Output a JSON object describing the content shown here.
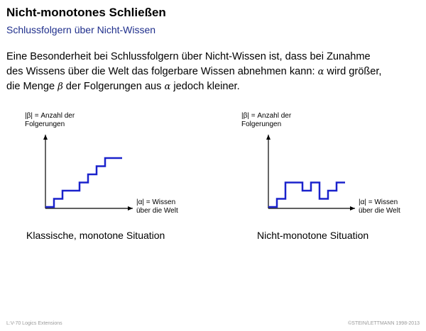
{
  "slide": {
    "title": "Nicht-monotones Schließen",
    "subtitle": "Schlussfolgern über Nicht-Wissen",
    "paragraph": {
      "line1": "Eine Besonderheit bei Schlussfolgern über Nicht-Wissen ist, dass bei Zunahme",
      "line2_pre": "des Wissens über die Welt das folgerbare Wissen abnehmen kann: ",
      "line2_alpha": "α",
      "line2_post": " wird größer,",
      "line3_pre": "die Menge ",
      "line3_beta": "β",
      "line3_mid": " der Folgerungen aus ",
      "line3_alpha": "α",
      "line3_post": " jedoch kleiner."
    }
  },
  "left_plot": {
    "y_label_1": "|β| = Anzahl der",
    "y_label_2": "Folgerungen",
    "x_label_1": "|α| = Wissen",
    "x_label_2": "über die Welt",
    "caption": "Klassische, monotone Situation"
  },
  "right_plot": {
    "y_label_1": "|β| = Anzahl der",
    "y_label_2": "Folgerungen",
    "x_label_1": "|α| = Wissen",
    "x_label_2": "über die Welt",
    "caption": "Nicht-monotone Situation"
  },
  "chart_data": [
    {
      "type": "line",
      "title": "Klassische, monotone Situation",
      "xlabel": "|α| = Wissen über die Welt",
      "ylabel": "|β| = Anzahl der Folgerungen",
      "series": [
        {
          "values": [
            0,
            1,
            2,
            2,
            3,
            4,
            5,
            6,
            6
          ]
        }
      ]
    },
    {
      "type": "line",
      "title": "Nicht-monotone Situation",
      "xlabel": "|α| = Wissen über die Welt",
      "ylabel": "|β| = Anzahl der Folgerungen",
      "series": [
        {
          "values": [
            0,
            1,
            3,
            3,
            2,
            3,
            1,
            2,
            3
          ]
        }
      ]
    }
  ],
  "colors": {
    "curve": "#1a22cc",
    "subtitle": "#1f2f8c",
    "footer": "#9a9a9a"
  },
  "footer": {
    "left": "L:V-70   Logics Extensions",
    "right": "©STEIN/LETTMANN 1998-2013"
  }
}
